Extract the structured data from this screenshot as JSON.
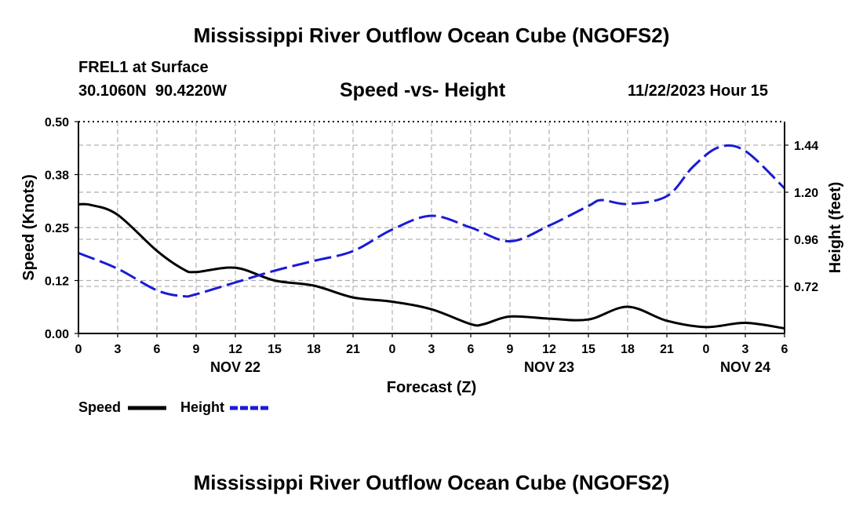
{
  "page": {
    "title": "Mississippi River Outflow Ocean Cube (NGOFS2)",
    "station_line": "FREL1 at Surface",
    "coords_line": "30.1060N  90.4220W",
    "subtitle": "Speed -vs- Height",
    "timestamp": "11/22/2023 Hour 15",
    "footer_title": "Mississippi River Outflow Ocean Cube (NGOFS2)"
  },
  "colors": {
    "speed": "#000000",
    "height": "#1a1ad6",
    "grid": "#b0b0b0"
  },
  "chart_data": {
    "type": "line",
    "title": "Speed -vs- Height",
    "xlabel": "Forecast (Z)",
    "ylabel": "Speed (Knots)",
    "ylabel_right": "Height (feet)",
    "x_range_hours": [
      0,
      54
    ],
    "x_ticks": [
      {
        "h": 0,
        "label": "0"
      },
      {
        "h": 3,
        "label": "3"
      },
      {
        "h": 6,
        "label": "6"
      },
      {
        "h": 9,
        "label": "9"
      },
      {
        "h": 12,
        "label": "12"
      },
      {
        "h": 15,
        "label": "15"
      },
      {
        "h": 18,
        "label": "18"
      },
      {
        "h": 21,
        "label": "21"
      },
      {
        "h": 24,
        "label": "0"
      },
      {
        "h": 27,
        "label": "3"
      },
      {
        "h": 30,
        "label": "6"
      },
      {
        "h": 33,
        "label": "9"
      },
      {
        "h": 36,
        "label": "12"
      },
      {
        "h": 39,
        "label": "15"
      },
      {
        "h": 42,
        "label": "18"
      },
      {
        "h": 45,
        "label": "21"
      },
      {
        "h": 48,
        "label": "0"
      },
      {
        "h": 51,
        "label": "3"
      },
      {
        "h": 54,
        "label": "6"
      }
    ],
    "day_labels": [
      {
        "h": 12,
        "label": "NOV 22"
      },
      {
        "h": 36,
        "label": "NOV 23"
      },
      {
        "h": 51,
        "label": "NOV 24"
      }
    ],
    "ylim_left": [
      0,
      0.5
    ],
    "yticks_left": [
      {
        "v": 0.0,
        "label": "0.00"
      },
      {
        "v": 0.125,
        "label": "0.12"
      },
      {
        "v": 0.25,
        "label": "0.25"
      },
      {
        "v": 0.375,
        "label": "0.38"
      },
      {
        "v": 0.5,
        "label": "0.50"
      }
    ],
    "ylim_right": [
      0.48,
      1.56
    ],
    "yticks_right": [
      {
        "v": 0.72,
        "label": "0.72"
      },
      {
        "v": 0.96,
        "label": "0.96"
      },
      {
        "v": 1.2,
        "label": "1.20"
      },
      {
        "v": 1.44,
        "label": "1.44"
      }
    ],
    "grid": true,
    "legend_position": "bottom-left",
    "series": [
      {
        "name": "Speed",
        "axis": "left",
        "style": "solid",
        "x": [
          0,
          1,
          3,
          6,
          8,
          9,
          12,
          15,
          18,
          21,
          24,
          27,
          30,
          31,
          33,
          36,
          39,
          42,
          45,
          48,
          51,
          54
        ],
        "values": [
          0.305,
          0.303,
          0.28,
          0.195,
          0.152,
          0.145,
          0.155,
          0.125,
          0.113,
          0.085,
          0.075,
          0.057,
          0.022,
          0.022,
          0.04,
          0.035,
          0.033,
          0.063,
          0.03,
          0.015,
          0.025,
          0.012
        ]
      },
      {
        "name": "Height",
        "axis": "right",
        "style": "dashed",
        "x": [
          0,
          3,
          6,
          8,
          9,
          12,
          15,
          18,
          21,
          24,
          27,
          30,
          33,
          36,
          39,
          40,
          42,
          45,
          47,
          49,
          51,
          54
        ],
        "values": [
          0.89,
          0.81,
          0.7,
          0.67,
          0.68,
          0.74,
          0.8,
          0.85,
          0.9,
          1.01,
          1.08,
          1.02,
          0.95,
          1.03,
          1.13,
          1.16,
          1.14,
          1.18,
          1.33,
          1.43,
          1.41,
          1.22
        ]
      }
    ]
  }
}
